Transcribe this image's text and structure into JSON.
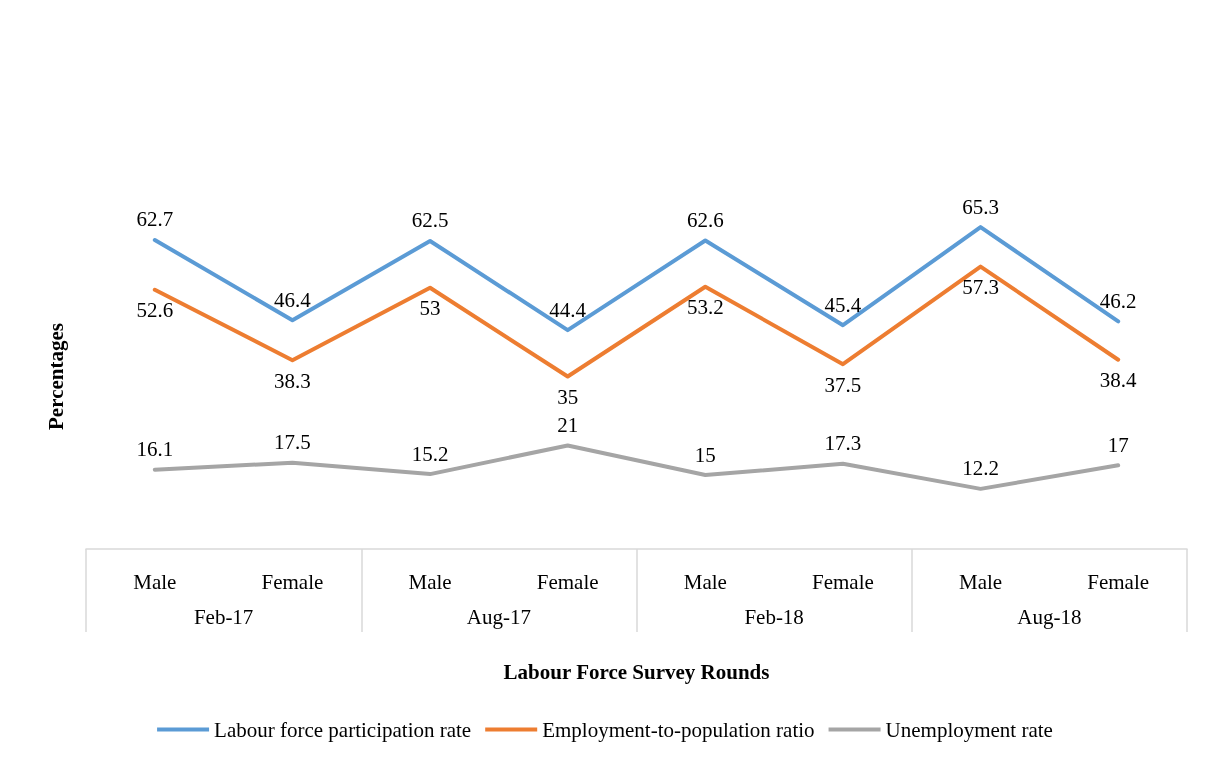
{
  "chart_data": {
    "type": "line",
    "xlabel": "Labour Force Survey Rounds",
    "ylabel": "Percentages",
    "categories": [
      "Male",
      "Female",
      "Male",
      "Female",
      "Male",
      "Female",
      "Male",
      "Female"
    ],
    "annotations": [
      "Feb-17",
      "Aug-17",
      "Feb-18",
      "Aug-18"
    ],
    "series": [
      {
        "name": "Labour force participation rate",
        "color": "#5b9bd5",
        "values": [
          62.7,
          46.4,
          62.5,
          44.4,
          62.6,
          45.4,
          65.3,
          46.2
        ]
      },
      {
        "name": "Employment-to-population ratio",
        "color": "#ed7d31",
        "values": [
          52.6,
          38.3,
          53,
          35,
          53.2,
          37.5,
          57.3,
          38.4
        ]
      },
      {
        "name": "Unemployment rate",
        "color": "#a5a5a5",
        "values": [
          16.1,
          17.5,
          15.2,
          21,
          15,
          17.3,
          12.2,
          17
        ]
      }
    ],
    "data_labels": true,
    "legend": "bottom",
    "grid": false,
    "marker": "none",
    "line_style": "solid"
  }
}
